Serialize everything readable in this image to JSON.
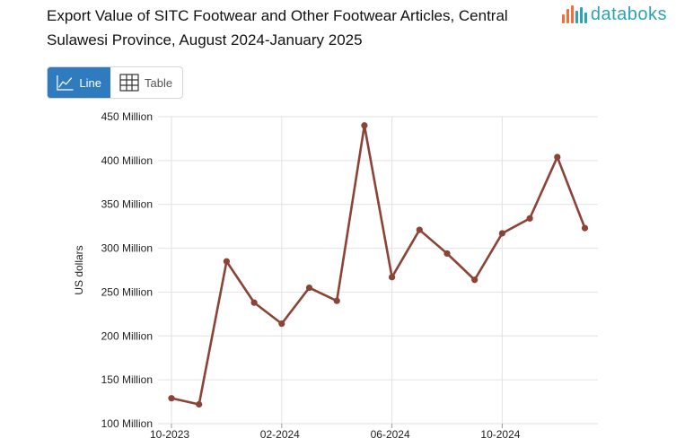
{
  "header": {
    "title": "Export Value of SITC Footwear and Other Footwear Articles, Central Sulawesi Province, August 2024-January 2025",
    "logo_text": "databoks",
    "logo_colors": [
      "#f36f3a",
      "#f36f3a",
      "#f36f3a",
      "#2aa3b8",
      "#2aa3b8",
      "#2aa3b8"
    ]
  },
  "toolbar": {
    "line_label": "Line",
    "table_label": "Table",
    "active": "line",
    "active_color": "#2e7bbf"
  },
  "chart_data": {
    "type": "line",
    "title": "Export Value of SITC Footwear and Other Footwear Articles, Central Sulawesi Province, August 2024-January 2025",
    "ylabel": "US dollars",
    "xlabel": "",
    "ylim": [
      100,
      450
    ],
    "grid": true,
    "y_ticks": [
      100,
      150,
      200,
      250,
      300,
      350,
      400,
      450
    ],
    "y_tick_labels": [
      "100 Million",
      "150 Million",
      "200 Million",
      "250 Million",
      "300 Million",
      "350 Million",
      "400 Million",
      "450 Million"
    ],
    "x_tick_labels": [
      "10-2023",
      "02-2024",
      "06-2024",
      "10-2024"
    ],
    "x_tick_dates": [
      "2023-10",
      "2024-02",
      "2024-06",
      "2024-10"
    ],
    "line_color": "#8b4336",
    "series": [
      {
        "x": [
          "2023-10",
          "2023-11",
          "2023-12",
          "2024-01",
          "2024-02",
          "2024-03",
          "2024-04",
          "2024-05",
          "2024-06",
          "2024-07",
          "2024-08",
          "2024-09",
          "2024-10",
          "2024-11",
          "2024-12",
          "2025-01"
        ],
        "values": [
          129,
          122,
          285,
          238,
          214,
          255,
          240,
          440,
          267,
          321,
          294,
          264,
          317,
          334,
          404,
          323
        ]
      }
    ]
  }
}
